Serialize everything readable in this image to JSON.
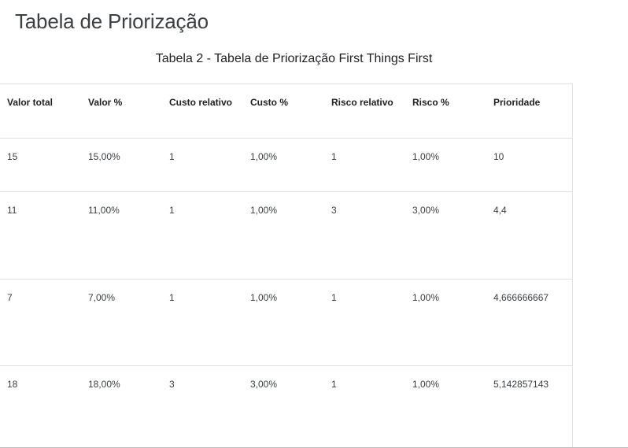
{
  "page": {
    "title": "Tabela de Priorização"
  },
  "table": {
    "caption": "Tabela 2 - Tabela de Priorização First Things First",
    "headers": [
      "Valor total",
      "Valor %",
      "Custo relativo",
      "Custo %",
      "Risco relativo",
      "Risco %",
      "Prioridade"
    ],
    "rows": [
      [
        "15",
        "15,00%",
        "1",
        "1,00%",
        "1",
        "1,00%",
        "10"
      ],
      [
        "11",
        "11,00%",
        "1",
        "1,00%",
        "3",
        "3,00%",
        "4,4"
      ],
      [
        "7",
        "7,00%",
        "1",
        "1,00%",
        "1",
        "1,00%",
        "4,666666667"
      ],
      [
        "18",
        "18,00%",
        "3",
        "3,00%",
        "1",
        "1,00%",
        "5,142857143"
      ]
    ]
  }
}
